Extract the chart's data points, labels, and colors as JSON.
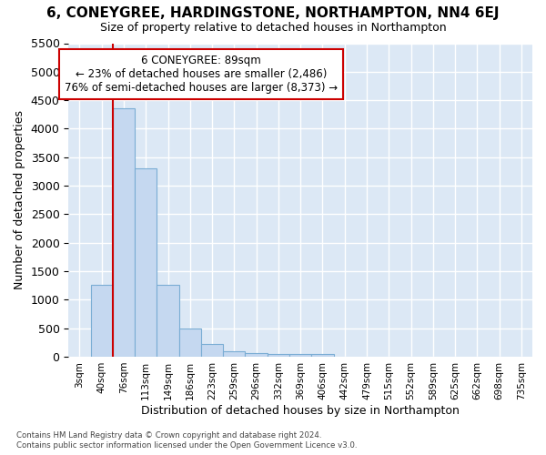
{
  "title": "6, CONEYGREE, HARDINGSTONE, NORTHAMPTON, NN4 6EJ",
  "subtitle": "Size of property relative to detached houses in Northampton",
  "xlabel": "Distribution of detached houses by size in Northampton",
  "ylabel": "Number of detached properties",
  "annotation_line1": "6 CONEYGREE: 89sqm",
  "annotation_line2": "← 23% of detached houses are smaller (2,486)",
  "annotation_line3": "76% of semi-detached houses are larger (8,373) →",
  "footer_line1": "Contains HM Land Registry data © Crown copyright and database right 2024.",
  "footer_line2": "Contains public sector information licensed under the Open Government Licence v3.0.",
  "bar_color": "#c5d8f0",
  "bar_edge_color": "#7aadd4",
  "bar_labels": [
    "3sqm",
    "40sqm",
    "76sqm",
    "113sqm",
    "149sqm",
    "186sqm",
    "223sqm",
    "259sqm",
    "296sqm",
    "332sqm",
    "369sqm",
    "406sqm",
    "442sqm",
    "479sqm",
    "515sqm",
    "552sqm",
    "589sqm",
    "625sqm",
    "662sqm",
    "698sqm",
    "735sqm"
  ],
  "bar_values": [
    0,
    1260,
    4360,
    3300,
    1260,
    490,
    220,
    100,
    70,
    55,
    55,
    55,
    0,
    0,
    0,
    0,
    0,
    0,
    0,
    0,
    0
  ],
  "red_line_index": 2,
  "ylim": [
    0,
    5500
  ],
  "yticks": [
    0,
    500,
    1000,
    1500,
    2000,
    2500,
    3000,
    3500,
    4000,
    4500,
    5000,
    5500
  ],
  "bg_color": "#dce8f5",
  "grid_color": "#ffffff",
  "fig_bg_color": "#ffffff",
  "annotation_box_color": "#ffffff",
  "annotation_box_edge": "#cc0000",
  "red_line_color": "#cc0000"
}
